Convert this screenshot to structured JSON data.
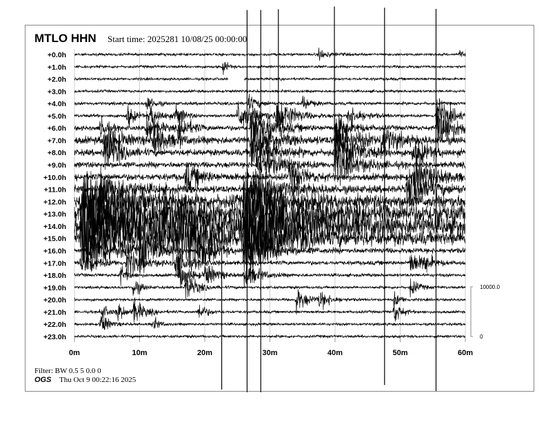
{
  "header": {
    "station": "MTLO HHN",
    "start_time": "Start time: 2025281 10/08/25 00:00:00"
  },
  "footer": {
    "filter": "Filter: BW 0.5 5 0.0 0",
    "org": "OGS",
    "timestamp": "Thu Oct  9 00:22:16 2025"
  },
  "chart_data": {
    "type": "line",
    "subtype": "helicorder",
    "row_labels": [
      "+0.0h",
      "+1.0h",
      "+2.0h",
      "+3.0h",
      "+4.0h",
      "+5.0h",
      "+6.0h",
      "+7.0h",
      "+8.0h",
      "+9.0h",
      "+10.0h",
      "+11.0h",
      "+12.0h",
      "+13.0h",
      "+14.0h",
      "+15.0h",
      "+16.0h",
      "+17.0h",
      "+18.0h",
      "+19.0h",
      "+20.0h",
      "+21.0h",
      "+22.0h",
      "+23.0h"
    ],
    "x_tick_labels": [
      "0m",
      "10m",
      "20m",
      "30m",
      "40m",
      "50m",
      "60m"
    ],
    "xlim": [
      0,
      60
    ],
    "scale_bar": {
      "top_label": "10000.0",
      "bottom_label": "0",
      "top_value": 10000,
      "bottom_value": 0
    },
    "noise_level_counts": [
      250,
      250,
      250,
      250,
      300,
      300,
      450,
      700,
      600,
      550,
      650,
      700,
      1200,
      1800,
      1800,
      1300,
      500,
      400,
      300,
      250,
      250,
      250,
      250,
      250
    ],
    "data_gaps": [
      {
        "hour": 2,
        "from_min": 23.6,
        "to_min": 26
      }
    ],
    "bursts": [
      {
        "hour": 0,
        "minute": 37.5,
        "amp": 1200,
        "dur": 1.2
      },
      {
        "hour": 0,
        "minute": 59,
        "amp": 800,
        "dur": 0.6
      },
      {
        "hour": 1,
        "minute": 22.8,
        "amp": 1500,
        "dur": 0.6
      },
      {
        "hour": 4,
        "minute": 11,
        "amp": 1800,
        "dur": 1
      },
      {
        "hour": 4,
        "minute": 26.5,
        "amp": 1500,
        "dur": 1.5
      },
      {
        "hour": 4,
        "minute": 35,
        "amp": 1500,
        "dur": 1
      },
      {
        "hour": 5,
        "minute": 8,
        "amp": 2500,
        "dur": 1
      },
      {
        "hour": 5,
        "minute": 11.5,
        "amp": 2500,
        "dur": 1.5
      },
      {
        "hour": 5,
        "minute": 15.5,
        "amp": 2500,
        "dur": 1
      },
      {
        "hour": 5,
        "minute": 25,
        "amp": 3000,
        "dur": 3
      },
      {
        "hour": 5,
        "minute": 31,
        "amp": 4000,
        "dur": 2
      },
      {
        "hour": 5,
        "minute": 42,
        "amp": 2000,
        "dur": 2
      },
      {
        "hour": 5,
        "minute": 55.5,
        "amp": 4000,
        "dur": 2
      },
      {
        "hour": 6,
        "minute": 4,
        "amp": 2500,
        "dur": 1
      },
      {
        "hour": 6,
        "minute": 11,
        "amp": 3000,
        "dur": 1.5
      },
      {
        "hour": 6,
        "minute": 16,
        "amp": 3000,
        "dur": 1.5
      },
      {
        "hour": 6,
        "minute": 27,
        "amp": 4000,
        "dur": 3
      },
      {
        "hour": 6,
        "minute": 40,
        "amp": 3000,
        "dur": 2
      },
      {
        "hour": 6,
        "minute": 55.5,
        "amp": 4500,
        "dur": 2.5
      },
      {
        "hour": 7,
        "minute": 4.5,
        "amp": 3500,
        "dur": 2
      },
      {
        "hour": 7,
        "minute": 12,
        "amp": 3000,
        "dur": 2
      },
      {
        "hour": 7,
        "minute": 27,
        "amp": 3500,
        "dur": 3
      },
      {
        "hour": 7,
        "minute": 40,
        "amp": 3500,
        "dur": 3
      },
      {
        "hour": 7,
        "minute": 47,
        "amp": 3000,
        "dur": 2
      },
      {
        "hour": 8,
        "minute": 4.5,
        "amp": 4000,
        "dur": 2
      },
      {
        "hour": 8,
        "minute": 27,
        "amp": 4000,
        "dur": 3
      },
      {
        "hour": 8,
        "minute": 40,
        "amp": 4000,
        "dur": 3
      },
      {
        "hour": 8,
        "minute": 52,
        "amp": 3000,
        "dur": 2
      },
      {
        "hour": 9,
        "minute": 28,
        "amp": 3500,
        "dur": 3
      },
      {
        "hour": 9,
        "minute": 40,
        "amp": 3500,
        "dur": 3
      },
      {
        "hour": 10,
        "minute": 17,
        "amp": 3000,
        "dur": 2
      },
      {
        "hour": 10,
        "minute": 33,
        "amp": 3000,
        "dur": 2
      },
      {
        "hour": 10,
        "minute": 52,
        "amp": 3500,
        "dur": 3
      },
      {
        "hour": 11,
        "minute": 4,
        "amp": 4000,
        "dur": 3
      },
      {
        "hour": 11,
        "minute": 27,
        "amp": 4000,
        "dur": 4
      },
      {
        "hour": 11,
        "minute": 51,
        "amp": 3500,
        "dur": 3
      },
      {
        "hour": 12,
        "minute": 1,
        "amp": 5000,
        "dur": 6
      },
      {
        "hour": 12,
        "minute": 26,
        "amp": 5000,
        "dur": 5
      },
      {
        "hour": 13,
        "minute": 1,
        "amp": 6000,
        "dur": 8
      },
      {
        "hour": 13,
        "minute": 26,
        "amp": 6000,
        "dur": 5
      },
      {
        "hour": 14,
        "minute": 1,
        "amp": 6000,
        "dur": 10
      },
      {
        "hour": 14,
        "minute": 13,
        "amp": 5000,
        "dur": 5
      },
      {
        "hour": 14,
        "minute": 26,
        "amp": 6000,
        "dur": 6
      },
      {
        "hour": 15,
        "minute": 1,
        "amp": 5000,
        "dur": 8
      },
      {
        "hour": 15,
        "minute": 16,
        "amp": 4500,
        "dur": 4
      },
      {
        "hour": 15,
        "minute": 26,
        "amp": 6000,
        "dur": 5
      },
      {
        "hour": 16,
        "minute": 2,
        "amp": 3500,
        "dur": 4
      },
      {
        "hour": 16,
        "minute": 10,
        "amp": 4500,
        "dur": 2
      },
      {
        "hour": 16,
        "minute": 19,
        "amp": 4000,
        "dur": 2
      },
      {
        "hour": 16,
        "minute": 26,
        "amp": 5000,
        "dur": 3
      },
      {
        "hour": 17,
        "minute": 1,
        "amp": 2500,
        "dur": 2
      },
      {
        "hour": 17,
        "minute": 8,
        "amp": 3000,
        "dur": 2
      },
      {
        "hour": 17,
        "minute": 15.5,
        "amp": 3000,
        "dur": 2
      },
      {
        "hour": 17,
        "minute": 51.5,
        "amp": 2500,
        "dur": 1.5
      },
      {
        "hour": 17,
        "minute": 53.5,
        "amp": 2000,
        "dur": 1
      },
      {
        "hour": 18,
        "minute": 7,
        "amp": 2000,
        "dur": 1
      },
      {
        "hour": 18,
        "minute": 16,
        "amp": 3000,
        "dur": 1.5
      },
      {
        "hour": 18,
        "minute": 20,
        "amp": 2500,
        "dur": 1.5
      },
      {
        "hour": 18,
        "minute": 26,
        "amp": 2500,
        "dur": 2
      },
      {
        "hour": 19,
        "minute": 9,
        "amp": 2000,
        "dur": 1
      },
      {
        "hour": 19,
        "minute": 17,
        "amp": 3000,
        "dur": 1.5
      },
      {
        "hour": 19,
        "minute": 51.5,
        "amp": 2000,
        "dur": 1
      },
      {
        "hour": 20,
        "minute": 34,
        "amp": 2500,
        "dur": 1.5
      },
      {
        "hour": 20,
        "minute": 37.5,
        "amp": 1800,
        "dur": 1.5
      },
      {
        "hour": 20,
        "minute": 49,
        "amp": 1500,
        "dur": 1
      },
      {
        "hour": 21,
        "minute": 4,
        "amp": 1800,
        "dur": 1
      },
      {
        "hour": 21,
        "minute": 6.5,
        "amp": 2000,
        "dur": 1
      },
      {
        "hour": 21,
        "minute": 9,
        "amp": 2500,
        "dur": 1.5
      },
      {
        "hour": 21,
        "minute": 19,
        "amp": 2000,
        "dur": 1
      },
      {
        "hour": 21,
        "minute": 49,
        "amp": 2500,
        "dur": 1
      },
      {
        "hour": 22,
        "minute": 4,
        "amp": 2500,
        "dur": 1
      },
      {
        "hour": 22,
        "minute": 12,
        "amp": 1500,
        "dur": 0.8
      }
    ],
    "spikes": [
      {
        "hour": 16,
        "minute": 22.6,
        "up": 8000,
        "down": 28000
      },
      {
        "hour": 15,
        "minute": 26.5,
        "up": 46000,
        "down": 31000
      },
      {
        "hour": 15,
        "minute": 28.6,
        "up": 46000,
        "down": 31000
      },
      {
        "hour": 4,
        "minute": 31.3,
        "up": 19000,
        "down": 4000
      },
      {
        "hour": 5,
        "minute": 39.9,
        "up": 22000,
        "down": 10000
      },
      {
        "hour": 14,
        "minute": 47.6,
        "up": 44000,
        "down": 32000
      },
      {
        "hour": 6,
        "minute": 55.5,
        "up": 24000,
        "down": 53000
      }
    ]
  }
}
